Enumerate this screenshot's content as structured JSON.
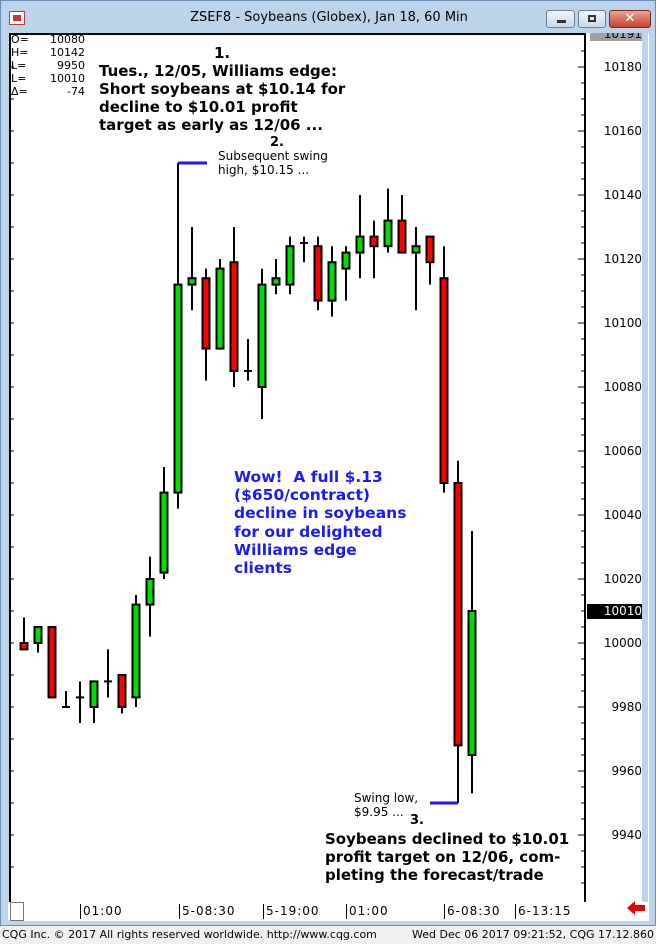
{
  "window": {
    "title": "ZSEF8 - Soybeans (Globex), Jan 18, 60 Min",
    "buttons": {
      "minimize": "minimize",
      "maximize": "maximize",
      "close": "✕"
    }
  },
  "ohlc_readout": [
    {
      "k": "O=",
      "v": "10080"
    },
    {
      "k": "H=",
      "v": "10142"
    },
    {
      "k": "L=",
      "v": "9950"
    },
    {
      "k": "L=",
      "v": "10010"
    },
    {
      "k": "Δ=",
      "v": "-74"
    }
  ],
  "annotations": {
    "n1": "1.",
    "text1": "Tues., 12/05, Williams edge:\nShort soybeans at $10.14 for\ndecline to $10.01 profit\ntarget as early as 12/06 ...",
    "n2": "2.",
    "text2": "Subsequent swing\nhigh, $10.15 ...",
    "wow": "Wow!  A full $.13\n($650/contract)\ndecline in soybeans\nfor our delighted\nWilliams edge\nclients",
    "swing_low": "Swing low,\n$9.95 ...",
    "n3": "3.",
    "text3": "Soybeans declined to $10.01\nprofit target on 12/06, com-\npleting the forecast/trade"
  },
  "status": {
    "left": "CQG Inc. © 2017 All rights reserved worldwide. http://www.cqg.com",
    "right": "Wed Dec 06 2017 09:21:52, CQG 17.12.860"
  },
  "colors": {
    "up": "#00e000",
    "down": "#ff0000",
    "annotation": "#1a1aff",
    "frame": "#bcd3ec"
  },
  "chart_data": {
    "type": "candlestick",
    "title": "ZSEF8 - Soybeans (Globex), Jan 18, 60 Min",
    "y_ticks": [
      "10180",
      "10160",
      "10140",
      "10120",
      "10100",
      "10080",
      "10060",
      "10040",
      "10020",
      "10000",
      "9980",
      "9960",
      "9940"
    ],
    "y_top_label": "10191",
    "last_price_label": "10010",
    "ylim": [
      9922,
      10191
    ],
    "x_ticks": [
      "01:00",
      "5-08:30",
      "5-19:00",
      "01:00",
      "6-08:30",
      "6-13:15"
    ],
    "candles": [
      {
        "o": 10000,
        "h": 10008,
        "l": 9998,
        "c": 9998
      },
      {
        "o": 10000,
        "h": 10005,
        "l": 9997,
        "c": 10005
      },
      {
        "o": 10005,
        "h": 10005,
        "l": 9983,
        "c": 9983
      },
      {
        "o": 9980,
        "h": 9985,
        "l": 9980,
        "c": 9980
      },
      {
        "o": 9983,
        "h": 9988,
        "l": 9975,
        "c": 9983
      },
      {
        "o": 9980,
        "h": 9988,
        "l": 9975,
        "c": 9988
      },
      {
        "o": 9988,
        "h": 9998,
        "l": 9983,
        "c": 9988
      },
      {
        "o": 9990,
        "h": 9990,
        "l": 9978,
        "c": 9980
      },
      {
        "o": 9983,
        "h": 10015,
        "l": 9980,
        "c": 10012
      },
      {
        "o": 10012,
        "h": 10027,
        "l": 10002,
        "c": 10020
      },
      {
        "o": 10022,
        "h": 10055,
        "l": 10020,
        "c": 10047
      },
      {
        "o": 10047,
        "h": 10150,
        "l": 10042,
        "c": 10112
      },
      {
        "o": 10112,
        "h": 10130,
        "l": 10104,
        "c": 10114
      },
      {
        "o": 10114,
        "h": 10117,
        "l": 10082,
        "c": 10092
      },
      {
        "o": 10092,
        "h": 10120,
        "l": 10092,
        "c": 10117
      },
      {
        "o": 10119,
        "h": 10130,
        "l": 10080,
        "c": 10085
      },
      {
        "o": 10085,
        "h": 10095,
        "l": 10082,
        "c": 10085
      },
      {
        "o": 10080,
        "h": 10117,
        "l": 10070,
        "c": 10112
      },
      {
        "o": 10112,
        "h": 10120,
        "l": 10109,
        "c": 10114
      },
      {
        "o": 10112,
        "h": 10127,
        "l": 10109,
        "c": 10124
      },
      {
        "o": 10125,
        "h": 10127,
        "l": 10119,
        "c": 10125
      },
      {
        "o": 10124,
        "h": 10127,
        "l": 10104,
        "c": 10107
      },
      {
        "o": 10107,
        "h": 10124,
        "l": 10102,
        "c": 10119
      },
      {
        "o": 10117,
        "h": 10124,
        "l": 10107,
        "c": 10122
      },
      {
        "o": 10122,
        "h": 10140,
        "l": 10114,
        "c": 10127
      },
      {
        "o": 10127,
        "h": 10132,
        "l": 10114,
        "c": 10124
      },
      {
        "o": 10124,
        "h": 10142,
        "l": 10122,
        "c": 10132
      },
      {
        "o": 10132,
        "h": 10140,
        "l": 10122,
        "c": 10122
      },
      {
        "o": 10122,
        "h": 10130,
        "l": 10104,
        "c": 10124
      },
      {
        "o": 10127,
        "h": 10127,
        "l": 10112,
        "c": 10119
      },
      {
        "o": 10114,
        "h": 10124,
        "l": 10047,
        "c": 10050
      },
      {
        "o": 10050,
        "h": 10057,
        "l": 9950,
        "c": 9968
      },
      {
        "o": 9965,
        "h": 10035,
        "l": 9953,
        "c": 10010
      }
    ],
    "markers": [
      {
        "label": "swing high",
        "price": 10150
      },
      {
        "label": "swing low",
        "price": 9950
      }
    ],
    "grid": false
  }
}
